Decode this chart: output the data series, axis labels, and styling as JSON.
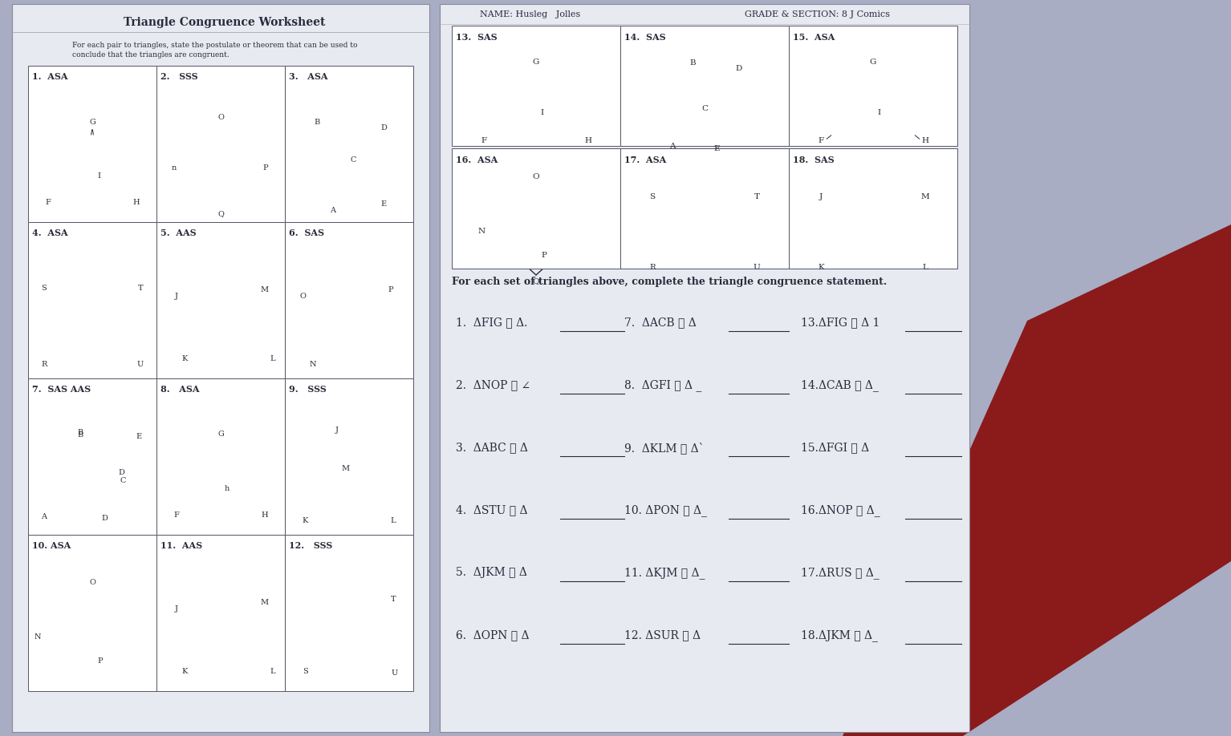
{
  "bg_color": "#b8bdd0",
  "paper_color": "#e8eaf2",
  "paper_color2": "#dde0ee",
  "green_color": "#7dc85a",
  "line_color": "#2a2a3a",
  "title": "Triangle Congruence Worksheet",
  "header_text": "NAME: Husleg   Jolles",
  "header_grade": "GRADE & SECTION: 8 J Comics",
  "left_subtitle1": "For each pair to triangles, state the postulate or theorem that can be used to",
  "left_subtitle2": "conclude that the triangles are congruent.",
  "grid_labels_left": [
    [
      "1.  ASA",
      "2.   SSS",
      "3.   ASA"
    ],
    [
      "4.  ASA",
      "5.  AAS",
      "6.  SAS"
    ],
    [
      "7.  SAS AAS",
      "8.   ASA",
      "9.   SSS"
    ],
    [
      "10. ASA",
      "11.  AAS",
      "12.   SSS"
    ]
  ],
  "grid_labels_right_top": [
    [
      "13.  SAS",
      "14.  SAS",
      "15.  ASA"
    ],
    [
      "16.  ASA",
      "17.  ASA",
      "18.  SAS"
    ]
  ],
  "answer_subtitle": "For each set of triangles above, complete the triangle congruence statement.",
  "answers_col1": [
    "1.  ΔFIG ≅ Δ.",
    "2.  ΔNOP ≅ ∠",
    "3.  ΔABC ≅ Δ",
    "4.  ΔSTU ≅ Δ",
    "5.  ΔJKM ≅ Δ",
    "6.  ΔOPN ≅ Δ"
  ],
  "answers_col2": [
    "7.  ΔACB ≅ Δ",
    "8.  ΔGFI ≅ Δ _",
    "9.  ΔKLM ≅ Δ`",
    "10. ΔPON ≅ Δ_",
    "11. ΔKJM ≅ Δ_",
    "12. ΔSUR ≅ Δ"
  ],
  "answers_col3": [
    "13.ΔFIG ≅ Δ 1",
    "14.ΔCAB ≅ Δ_",
    "15.ΔFGI ≅ Δ",
    "16.ΔNOP ≅ Δ_",
    "17.ΔRUS ≅ Δ_",
    "18.ΔJKM ≅ Δ_"
  ]
}
